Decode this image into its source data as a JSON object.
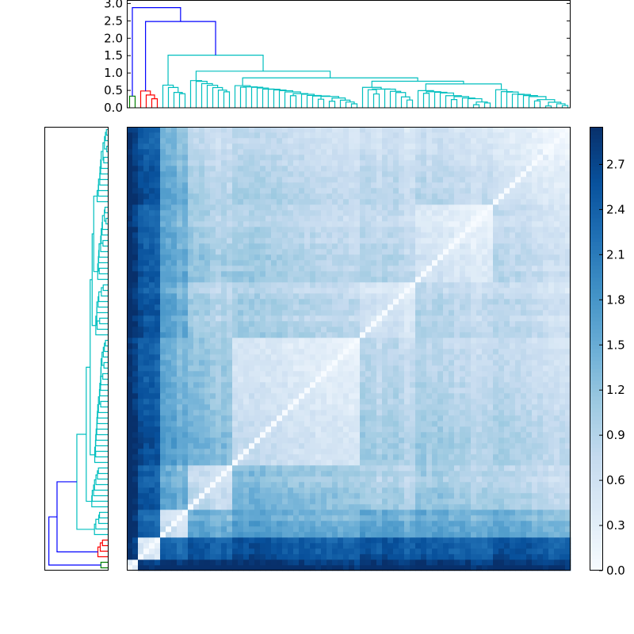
{
  "chart_data": {
    "type": "heatmap",
    "description_kind": "clustered distance matrix with row and column dendrograms",
    "leaf_count": 80,
    "clusters": [
      {
        "name": "",
        "size": 2
      },
      {
        "name": "",
        "size": 4
      },
      {
        "name": "",
        "size": 5
      },
      {
        "name": "",
        "size": 8
      },
      {
        "name": "",
        "size": 10
      },
      {
        "name": "",
        "size": 14
      },
      {
        "name": "",
        "size": 14
      },
      {
        "name": "",
        "size": 23
      }
    ],
    "block_mean_values": [
      [
        0.3,
        2.8,
        2.9,
        2.9,
        2.9,
        2.9,
        2.9,
        2.9
      ],
      [
        2.8,
        0.4,
        2.3,
        2.4,
        2.5,
        2.5,
        2.4,
        2.5
      ],
      [
        2.9,
        2.3,
        0.5,
        1.4,
        1.5,
        1.4,
        1.5,
        1.5
      ],
      [
        2.9,
        2.4,
        1.4,
        0.6,
        0.9,
        0.8,
        1.0,
        1.2
      ],
      [
        2.9,
        2.5,
        1.5,
        0.9,
        0.5,
        0.7,
        0.8,
        0.9
      ],
      [
        2.9,
        2.5,
        1.4,
        0.8,
        0.7,
        0.4,
        0.7,
        0.8
      ],
      [
        2.9,
        2.4,
        1.5,
        1.0,
        0.8,
        0.7,
        0.4,
        0.9
      ],
      [
        2.9,
        2.5,
        1.5,
        1.2,
        0.9,
        0.8,
        0.9,
        0.5
      ]
    ],
    "diagonal": 0.0,
    "colormap": "Blues",
    "color_range": [
      0.0,
      2.95
    ],
    "colorbar_ticks": [
      "0.0",
      "0.3",
      "0.6",
      "0.9",
      "1.2",
      "1.5",
      "1.8",
      "2.1",
      "2.4",
      "2.7"
    ],
    "dendrogram": {
      "linkage": "average",
      "ylim": [
        0.0,
        3.1
      ],
      "y_ticks": [
        "0.0",
        "0.5",
        "1.0",
        "1.5",
        "2.0",
        "2.5",
        "3.0"
      ],
      "color_threshold_fraction": 0.7,
      "above_threshold_color": "#0000ff",
      "cluster_colors": [
        "#008000",
        "#ff0000",
        "#00bfbf",
        "#bf00bf",
        "#bfbf00"
      ]
    },
    "colormap_stops": [
      "#f7fbff",
      "#deebf7",
      "#c6dbef",
      "#9ecae1",
      "#6baed6",
      "#4292c6",
      "#2171b5",
      "#08519c",
      "#08306b"
    ]
  }
}
